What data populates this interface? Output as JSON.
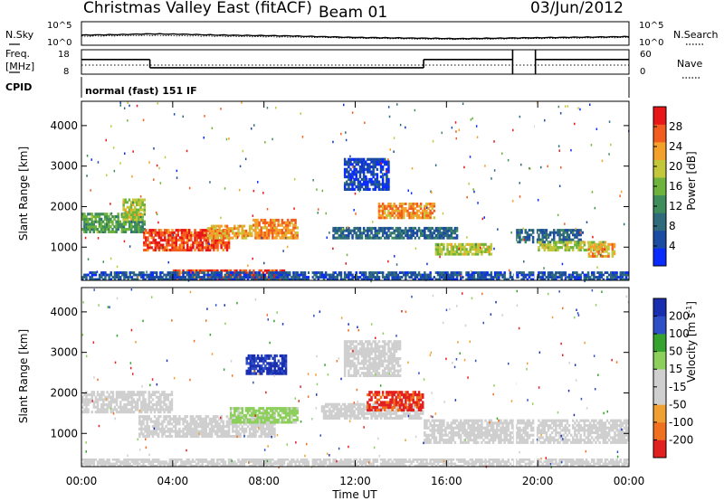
{
  "header": {
    "title": "Christmas Valley East (fitACF)",
    "beam": "Beam 01",
    "date": "03/Jun/2012"
  },
  "noise_panel": {
    "left_label": "N.Sky",
    "right_label": "N.Search",
    "left_ticks": [
      "10^5",
      "10^0"
    ],
    "right_ticks": [
      "10^5",
      "10^0"
    ]
  },
  "freq_panel": {
    "left_label_1": "Freq.",
    "left_label_2": "[MHz]",
    "right_label": "Nave",
    "left_ticks": [
      "18",
      "8"
    ],
    "right_ticks": [
      "60",
      "0"
    ]
  },
  "cpid": {
    "label": "CPID",
    "text": "normal (fast) 151 IF"
  },
  "colors": {
    "power_scale": [
      "#0a2bff",
      "#1c4ba3",
      "#2f6b7a",
      "#3f8d5a",
      "#6eb33b",
      "#c3c83a",
      "#f3a12a",
      "#f25d1f",
      "#e81616"
    ],
    "velocity_scale": [
      "#1a2eb0",
      "#2f4fc7",
      "#35a32e",
      "#8ccf5a",
      "#cfcfcf",
      "#cfcfcf",
      "#f0a032",
      "#f07020",
      "#e22020"
    ]
  },
  "chart_data": [
    {
      "type": "line",
      "panel": "noise",
      "ylabel": "N.Sky",
      "y2label": "N.Search",
      "ylog": true,
      "yticks": [
        "10^5",
        "10^0"
      ],
      "series": [
        {
          "values": [
            2.1,
            2.2,
            2.4,
            2.3,
            2.1,
            2.0,
            1.9,
            1.7,
            1.5,
            1.4,
            1.3,
            1.2,
            1.3,
            1.4,
            1.5,
            1.6,
            1.7
          ]
        },
        {
          "values": [
            1.8,
            1.9,
            2.0,
            1.9,
            1.8,
            1.7,
            1.6,
            1.5,
            1.3,
            1.2,
            1.1,
            1.0,
            1.1,
            1.2,
            1.3,
            1.4,
            1.5
          ]
        }
      ]
    },
    {
      "type": "line",
      "panel": "frequency",
      "ylabel": "Freq. [MHz]",
      "y2label": "Nave",
      "ylim": [
        8,
        18
      ],
      "yticks": [
        "18",
        "8"
      ],
      "y2ticks": [
        "60",
        "0"
      ],
      "series": [
        {
          "segments": [
            [
              0,
              3,
              14
            ],
            [
              3,
              15,
              10.6
            ],
            [
              15,
              18.9,
              14
            ],
            [
              19.9,
              24,
              14
            ]
          ]
        }
      ]
    },
    {
      "type": "heatmap",
      "panel": "power",
      "ylabel": "Slant Range [km]",
      "xlabel": "Time UT",
      "xlim": [
        0,
        24
      ],
      "ylim": [
        180,
        4600
      ],
      "xticks": [
        "00:00",
        "04:00",
        "08:00",
        "12:00",
        "16:00",
        "20:00",
        "00:00"
      ],
      "yticks": [
        "1000",
        "2000",
        "3000",
        "4000"
      ],
      "colorbar_label": "Power [dB]",
      "colorbar_ticks": [
        "4",
        "8",
        "12",
        "16",
        "20",
        "24",
        "28"
      ],
      "colorbar_range": [
        0,
        32
      ],
      "bands": [
        {
          "t0": 0,
          "t1": 2.8,
          "r0": 1350,
          "r1": 1850,
          "level": 14
        },
        {
          "t0": 1.8,
          "t1": 2.8,
          "r0": 1650,
          "r1": 2200,
          "level": 18
        },
        {
          "t0": 2.7,
          "t1": 6.5,
          "r0": 900,
          "r1": 1450,
          "level": 28
        },
        {
          "t0": 5.5,
          "t1": 7.5,
          "r0": 1200,
          "r1": 1550,
          "level": 22
        },
        {
          "t0": 7.5,
          "t1": 9.5,
          "r0": 1200,
          "r1": 1700,
          "level": 24
        },
        {
          "t0": 4,
          "t1": 9,
          "r0": 180,
          "r1": 450,
          "level": 28
        },
        {
          "t0": 11,
          "t1": 16.5,
          "r0": 1200,
          "r1": 1500,
          "level": 8
        },
        {
          "t0": 13,
          "t1": 15.5,
          "r0": 1700,
          "r1": 2100,
          "level": 24
        },
        {
          "t0": 15.5,
          "t1": 18,
          "r0": 800,
          "r1": 1100,
          "level": 18
        },
        {
          "t0": 19,
          "t1": 22,
          "r0": 1100,
          "r1": 1450,
          "level": 8
        },
        {
          "t0": 20,
          "t1": 23,
          "r0": 900,
          "r1": 1150,
          "level": 18
        },
        {
          "t0": 22.2,
          "t1": 23.4,
          "r0": 750,
          "r1": 1100,
          "level": 22
        },
        {
          "t0": 0,
          "t1": 24,
          "r0": 180,
          "r1": 400,
          "level": 6
        },
        {
          "t0": 11.5,
          "t1": 13.5,
          "r0": 2400,
          "r1": 3200,
          "level": 4
        }
      ]
    },
    {
      "type": "heatmap",
      "panel": "velocity",
      "ylabel": "Slant Range [km]",
      "xlabel": "Time UT",
      "xlim": [
        0,
        24
      ],
      "ylim": [
        180,
        4600
      ],
      "xticks": [
        "00:00",
        "04:00",
        "08:00",
        "12:00",
        "16:00",
        "20:00",
        "00:00"
      ],
      "yticks": [
        "1000",
        "2000",
        "3000",
        "4000"
      ],
      "colorbar_label": "Velocity [m s^-1]",
      "colorbar_ticks": [
        "200",
        "100",
        "50",
        "15",
        "-15",
        "-50",
        "-100",
        "-200"
      ],
      "colorbar_range": [
        -250,
        250
      ],
      "bands": [
        {
          "t0": 0,
          "t1": 4,
          "r0": 1500,
          "r1": 2050,
          "value": 0
        },
        {
          "t0": 2.5,
          "t1": 8.5,
          "r0": 900,
          "r1": 1450,
          "value": 0
        },
        {
          "t0": 6.5,
          "t1": 9.5,
          "r0": 1250,
          "r1": 1650,
          "value": 40
        },
        {
          "t0": 7.2,
          "t1": 9.0,
          "r0": 2450,
          "r1": 2950,
          "value": 200
        },
        {
          "t0": 10.5,
          "t1": 15,
          "r0": 1350,
          "r1": 1750,
          "value": 0
        },
        {
          "t0": 12.5,
          "t1": 15,
          "r0": 1550,
          "r1": 2050,
          "value": -200
        },
        {
          "t0": 11.5,
          "t1": 14,
          "r0": 2400,
          "r1": 3300,
          "value": -30
        },
        {
          "t0": 15,
          "t1": 24,
          "r0": 750,
          "r1": 1350,
          "value": 0
        },
        {
          "t0": 0,
          "t1": 24,
          "r0": 180,
          "r1": 380,
          "value": -60
        }
      ]
    }
  ]
}
